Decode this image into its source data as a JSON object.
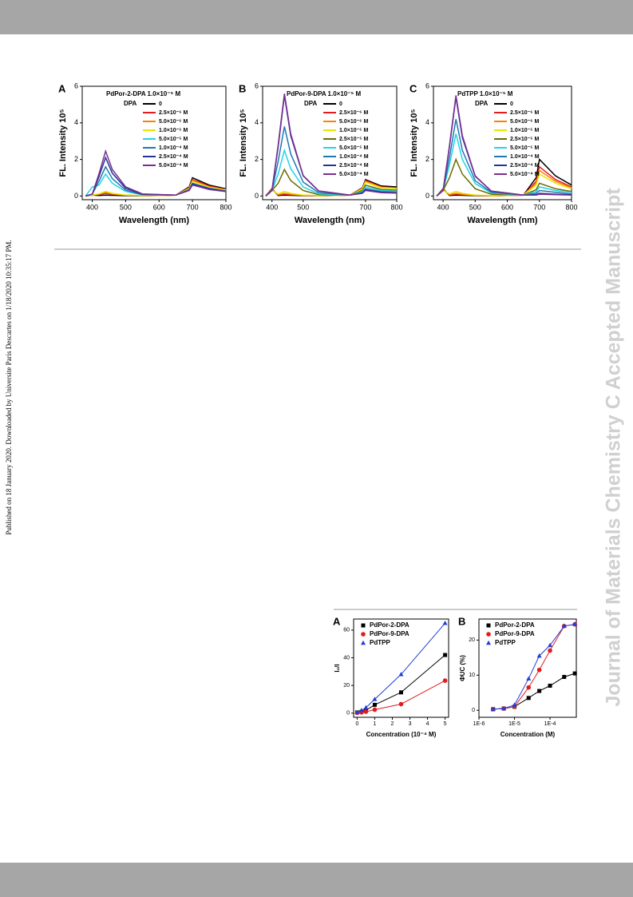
{
  "side_note": "Published on 18 January 2020. Downloaded by Universite Paris Descartes on 1/18/2020 10:35:17 PM.",
  "watermark": "Journal of Materials Chemistry C Accepted Manuscript",
  "chart_data": [
    {
      "type": "line",
      "title": "A",
      "legend_title": "PdPor-2-DPA 1.0×10⁻⁵ M",
      "legend_label": "DPA",
      "x_label": "Wavelength (nm)",
      "y_label": "FL. Intensity 10⁵",
      "x": [
        380,
        400,
        420,
        440,
        460,
        500,
        550,
        650,
        690,
        700,
        750,
        800
      ],
      "xlim": [
        370,
        800
      ],
      "xticks": [
        400,
        500,
        600,
        700,
        800
      ],
      "ylim": [
        -0.2,
        6
      ],
      "yticks": [
        0,
        2,
        4,
        6
      ],
      "series": [
        {
          "name": "0",
          "color": "#000000",
          "values": [
            0,
            0.05,
            0.03,
            0.05,
            0.04,
            0.02,
            0.01,
            0.05,
            0.5,
            1.0,
            0.6,
            0.4
          ]
        },
        {
          "name": "2.5×10⁻⁶ M",
          "color": "#e41a1c",
          "values": [
            0,
            0.05,
            0.08,
            0.15,
            0.1,
            0.04,
            0.02,
            0.05,
            0.45,
            0.9,
            0.55,
            0.35
          ]
        },
        {
          "name": "5.0×10⁻⁶ M",
          "color": "#ff7f00",
          "values": [
            0,
            0.05,
            0.1,
            0.2,
            0.12,
            0.05,
            0.02,
            0.05,
            0.43,
            0.85,
            0.5,
            0.35
          ]
        },
        {
          "name": "1.0×10⁻⁵ M",
          "color": "#e6e600",
          "values": [
            0,
            0.05,
            0.12,
            0.25,
            0.15,
            0.05,
            0.02,
            0.05,
            0.4,
            0.8,
            0.48,
            0.32
          ]
        },
        {
          "name": "5.0×10⁻⁵ M",
          "color": "#22d3e6",
          "values": [
            0,
            0.5,
            0.6,
            1.2,
            0.7,
            0.25,
            0.06,
            0.05,
            0.35,
            0.7,
            0.42,
            0.28
          ]
        },
        {
          "name": "1.0×10⁻⁴ M",
          "color": "#1f78b4",
          "values": [
            0,
            0.1,
            0.8,
            1.6,
            0.95,
            0.32,
            0.08,
            0.05,
            0.35,
            0.7,
            0.42,
            0.28
          ]
        },
        {
          "name": "2.5×10⁻⁴ M",
          "color": "#253494",
          "values": [
            0,
            0.1,
            1.05,
            2.1,
            1.25,
            0.42,
            0.1,
            0.05,
            0.33,
            0.65,
            0.4,
            0.26
          ]
        },
        {
          "name": "5.0×10⁻⁴ M",
          "color": "#7b2c91",
          "values": [
            0,
            0.1,
            1.2,
            2.45,
            1.45,
            0.5,
            0.12,
            0.05,
            0.3,
            0.6,
            0.36,
            0.24
          ]
        }
      ]
    },
    {
      "type": "line",
      "title": "B",
      "legend_title": "PdPor-9-DPA 1.0×10⁻⁵ M",
      "legend_label": "DPA",
      "x_label": "Wavelength (nm)",
      "y_label": "FL. Intensity 10⁵",
      "x": [
        380,
        400,
        420,
        440,
        460,
        500,
        550,
        650,
        690,
        700,
        750,
        800
      ],
      "xlim": [
        370,
        800
      ],
      "xticks": [
        400,
        500,
        700,
        800
      ],
      "ylim": [
        -0.2,
        6
      ],
      "yticks": [
        0,
        2,
        4,
        6
      ],
      "series": [
        {
          "name": "0",
          "color": "#000000",
          "values": [
            0,
            0.4,
            0.03,
            0.05,
            0.04,
            0.02,
            0.01,
            0.05,
            0.45,
            0.9,
            0.55,
            0.5
          ]
        },
        {
          "name": "2.5×10⁻⁶ M",
          "color": "#e41a1c",
          "values": [
            0,
            0.35,
            0.06,
            0.1,
            0.07,
            0.03,
            0.01,
            0.05,
            0.42,
            0.85,
            0.5,
            0.45
          ]
        },
        {
          "name": "5.0×10⁻⁶ M",
          "color": "#ff7f00",
          "values": [
            0,
            0.35,
            0.08,
            0.15,
            0.1,
            0.04,
            0.02,
            0.05,
            0.4,
            0.8,
            0.48,
            0.42
          ]
        },
        {
          "name": "1.0×10⁻⁵ M",
          "color": "#e6e600",
          "values": [
            0,
            0.3,
            0.12,
            0.25,
            0.15,
            0.05,
            0.02,
            0.05,
            0.38,
            0.75,
            0.45,
            0.4
          ]
        },
        {
          "name": "2.5×10⁻⁵ M",
          "color": "#6b6b00",
          "values": [
            0,
            0.3,
            0.7,
            1.45,
            0.85,
            0.3,
            0.07,
            0.05,
            0.3,
            0.6,
            0.36,
            0.32
          ]
        },
        {
          "name": "5.0×10⁻⁵ M",
          "color": "#22d3e6",
          "values": [
            0,
            0.3,
            1.2,
            2.5,
            1.5,
            0.5,
            0.12,
            0.05,
            0.25,
            0.5,
            0.3,
            0.27
          ]
        },
        {
          "name": "1.0×10⁻⁴ M",
          "color": "#1f78b4",
          "values": [
            0,
            0.3,
            1.9,
            3.8,
            2.3,
            0.76,
            0.19,
            0.05,
            0.2,
            0.4,
            0.24,
            0.21
          ]
        },
        {
          "name": "2.5×10⁻⁴ M",
          "color": "#253494",
          "values": [
            0,
            0.3,
            2.7,
            5.5,
            3.3,
            1.1,
            0.27,
            0.05,
            0.17,
            0.35,
            0.21,
            0.18
          ]
        },
        {
          "name": "5.0×10⁻⁴ M",
          "color": "#7b2c91",
          "values": [
            0,
            0.3,
            2.8,
            5.6,
            3.4,
            1.12,
            0.28,
            0.05,
            0.15,
            0.3,
            0.18,
            0.16
          ]
        }
      ]
    },
    {
      "type": "line",
      "title": "C",
      "legend_title": "PdTPP 1.0×10⁻⁵ M",
      "legend_label": "DPA",
      "x_label": "Wavelength (nm)",
      "y_label": "FL. Intensity 10⁵",
      "x": [
        380,
        400,
        420,
        440,
        460,
        500,
        550,
        650,
        690,
        700,
        750,
        800
      ],
      "xlim": [
        370,
        800
      ],
      "xticks": [
        400,
        500,
        600,
        700,
        800
      ],
      "ylim": [
        -0.2,
        6
      ],
      "yticks": [
        0,
        2,
        4,
        6
      ],
      "series": [
        {
          "name": "0",
          "color": "#000000",
          "values": [
            0,
            0.4,
            0.03,
            0.05,
            0.04,
            0.02,
            0.01,
            0.05,
            1.0,
            2.0,
            1.1,
            0.6
          ]
        },
        {
          "name": "2.5×10⁻⁶ M",
          "color": "#e41a1c",
          "values": [
            0,
            0.35,
            0.06,
            0.1,
            0.07,
            0.03,
            0.01,
            0.05,
            0.8,
            1.6,
            0.9,
            0.5
          ]
        },
        {
          "name": "5.0×10⁻⁶ M",
          "color": "#ff7f00",
          "values": [
            0,
            0.35,
            0.08,
            0.15,
            0.1,
            0.04,
            0.02,
            0.05,
            0.7,
            1.4,
            0.8,
            0.45
          ]
        },
        {
          "name": "1.0×10⁻⁵ M",
          "color": "#e6e600",
          "values": [
            0,
            0.3,
            0.12,
            0.25,
            0.15,
            0.05,
            0.02,
            0.05,
            0.6,
            1.2,
            0.7,
            0.4
          ]
        },
        {
          "name": "2.5×10⁻⁵ M",
          "color": "#6b6b00",
          "values": [
            0,
            0.3,
            1.0,
            2.0,
            1.2,
            0.4,
            0.1,
            0.05,
            0.35,
            0.7,
            0.4,
            0.25
          ]
        },
        {
          "name": "5.0×10⁻⁵ M",
          "color": "#22d3e6",
          "values": [
            0,
            0.3,
            1.7,
            3.4,
            2.0,
            0.68,
            0.17,
            0.05,
            0.25,
            0.5,
            0.3,
            0.2
          ]
        },
        {
          "name": "1.0×10⁻⁴ M",
          "color": "#1f78b4",
          "values": [
            0,
            0.3,
            2.1,
            4.2,
            2.5,
            0.84,
            0.21,
            0.05,
            0.15,
            0.3,
            0.2,
            0.12
          ]
        },
        {
          "name": "2.5×10⁻⁴ M",
          "color": "#253494",
          "values": [
            0,
            0.3,
            2.7,
            5.4,
            3.2,
            1.08,
            0.27,
            0.05,
            0.08,
            0.15,
            0.1,
            0.07
          ]
        },
        {
          "name": "5.0×10⁻⁴ M",
          "color": "#7b2c91",
          "values": [
            0,
            0.3,
            2.75,
            5.5,
            3.3,
            1.1,
            0.27,
            0.05,
            0.05,
            0.1,
            0.07,
            0.05
          ]
        }
      ]
    },
    {
      "type": "scatter",
      "title": "A",
      "x_label": "Concentration (10⁻⁴ M)",
      "y_label": "I₀/I",
      "x": [
        0,
        0.25,
        0.5,
        1,
        2.5,
        5
      ],
      "xlim": [
        -0.2,
        5.2
      ],
      "xticks": [
        0,
        1,
        2,
        3,
        4,
        5
      ],
      "ylim": [
        -3,
        68
      ],
      "yticks": [
        0,
        20,
        40,
        60
      ],
      "series": [
        {
          "name": "PdPor-2-DPA",
          "color": "#000000",
          "marker": "square",
          "values": [
            0.5,
            1,
            2,
            6,
            15,
            42
          ]
        },
        {
          "name": "PdPor-9-DPA",
          "color": "#e41a1c",
          "marker": "circle",
          "values": [
            0.3,
            0.5,
            1,
            2.5,
            6.5,
            23.5
          ]
        },
        {
          "name": "PdTPP",
          "color": "#1f3fd6",
          "marker": "triangle",
          "values": [
            0.5,
            2,
            4,
            10,
            28,
            65
          ]
        }
      ]
    },
    {
      "type": "scatter",
      "title": "B",
      "x_label": "Concentration (M)",
      "y_label": "ΦUC (%)",
      "xlog": true,
      "x": [
        2.5e-06,
        5e-06,
        1e-05,
        2.5e-05,
        5e-05,
        0.0001,
        0.00025,
        0.0005
      ],
      "xlim": [
        1e-06,
        0.00055
      ],
      "xticks": [
        {
          "value": 1e-06,
          "label": "1E-6"
        },
        {
          "value": 1e-05,
          "label": "1E-5"
        },
        {
          "value": 0.0001,
          "label": "1E-4"
        }
      ],
      "ylim": [
        -2,
        26
      ],
      "yticks": [
        0,
        10,
        20
      ],
      "series": [
        {
          "name": "PdPor-2-DPA",
          "color": "#000000",
          "marker": "square",
          "values": [
            0.3,
            0.5,
            1,
            3.5,
            5.5,
            7,
            9.5,
            10.5
          ]
        },
        {
          "name": "PdPor-9-DPA",
          "color": "#e41a1c",
          "marker": "circle",
          "values": [
            0.3,
            0.5,
            1,
            6.5,
            11.5,
            17,
            24,
            24.5
          ]
        },
        {
          "name": "PdTPP",
          "color": "#1f3fd6",
          "marker": "triangle",
          "values": [
            0.3,
            0.5,
            1.5,
            9,
            15.5,
            18.5,
            24,
            24.5
          ]
        }
      ]
    }
  ]
}
